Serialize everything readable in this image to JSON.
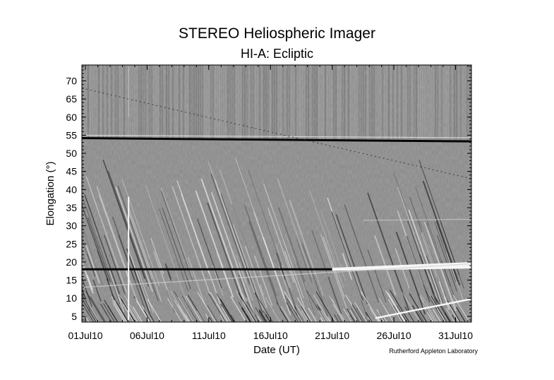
{
  "chart_data": {
    "type": "heatmap",
    "title": "STEREO Heliospheric Imager",
    "subtitle": "HI-A: Ecliptic",
    "xlabel": "Date (UT)",
    "ylabel": "Elongation (°)",
    "x_ticks": [
      "01Jul10",
      "06Jul10",
      "11Jul10",
      "16Jul10",
      "21Jul10",
      "26Jul10",
      "31Jul10"
    ],
    "x_tick_days": [
      0,
      5,
      10,
      15,
      20,
      25,
      30
    ],
    "xlim_days": [
      0,
      31
    ],
    "y_ticks": [
      5,
      10,
      15,
      20,
      25,
      30,
      35,
      40,
      45,
      50,
      55,
      60,
      65,
      70
    ],
    "ylim": [
      4,
      74
    ],
    "colormap": "grayscale",
    "credit": "Rutherford Appleton Laboratory"
  }
}
